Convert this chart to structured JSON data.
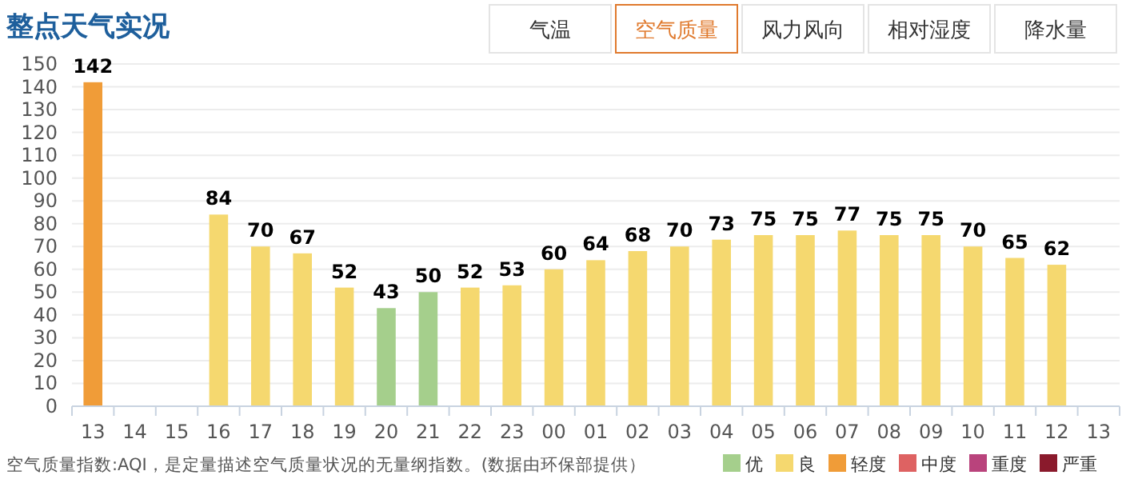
{
  "chart_data": {
    "type": "bar",
    "title": "整点天气实况",
    "categories": [
      "13",
      "14",
      "15",
      "16",
      "17",
      "18",
      "19",
      "20",
      "21",
      "22",
      "23",
      "00",
      "01",
      "02",
      "03",
      "04",
      "05",
      "06",
      "07",
      "08",
      "09",
      "10",
      "11",
      "12",
      "13"
    ],
    "series": [
      {
        "name": "优",
        "color": "#a5cf8c",
        "values": [
          null,
          null,
          null,
          null,
          null,
          null,
          null,
          43,
          50,
          null,
          null,
          null,
          null,
          null,
          null,
          null,
          null,
          null,
          null,
          null,
          null,
          null,
          null,
          null,
          null
        ]
      },
      {
        "name": "良",
        "color": "#f5d86f",
        "values": [
          null,
          null,
          null,
          84,
          70,
          67,
          52,
          null,
          null,
          52,
          53,
          60,
          64,
          68,
          70,
          73,
          75,
          75,
          77,
          75,
          75,
          70,
          65,
          62,
          null
        ]
      },
      {
        "name": "轻度",
        "color": "#f09c38",
        "values": [
          142,
          null,
          null,
          null,
          null,
          null,
          null,
          null,
          null,
          null,
          null,
          null,
          null,
          null,
          null,
          null,
          null,
          null,
          null,
          null,
          null,
          null,
          null,
          null,
          null
        ]
      },
      {
        "name": "中度",
        "color": "#de6262",
        "values": [
          null,
          null,
          null,
          null,
          null,
          null,
          null,
          null,
          null,
          null,
          null,
          null,
          null,
          null,
          null,
          null,
          null,
          null,
          null,
          null,
          null,
          null,
          null,
          null,
          null
        ]
      },
      {
        "name": "重度",
        "color": "#b9437c",
        "values": [
          null,
          null,
          null,
          null,
          null,
          null,
          null,
          null,
          null,
          null,
          null,
          null,
          null,
          null,
          null,
          null,
          null,
          null,
          null,
          null,
          null,
          null,
          null,
          null,
          null
        ]
      },
      {
        "name": "严重",
        "color": "#8a1a2c",
        "values": [
          null,
          null,
          null,
          null,
          null,
          null,
          null,
          null,
          null,
          null,
          null,
          null,
          null,
          null,
          null,
          null,
          null,
          null,
          null,
          null,
          null,
          null,
          null,
          null,
          null
        ]
      }
    ],
    "ylim": [
      0,
      150
    ],
    "yticks": [
      0,
      10,
      20,
      30,
      40,
      50,
      60,
      70,
      80,
      90,
      100,
      110,
      120,
      130,
      140,
      150
    ],
    "grid": "y",
    "data_labels": true,
    "legend": "bottom right",
    "annotations": [
      "空气质量指数:AQI，是定量描述空气质量状况的无量纲指数。(数据由环保部提供）",
      "气温",
      "空气质量",
      "风力风向",
      "相对湿度",
      "降水量"
    ]
  }
}
